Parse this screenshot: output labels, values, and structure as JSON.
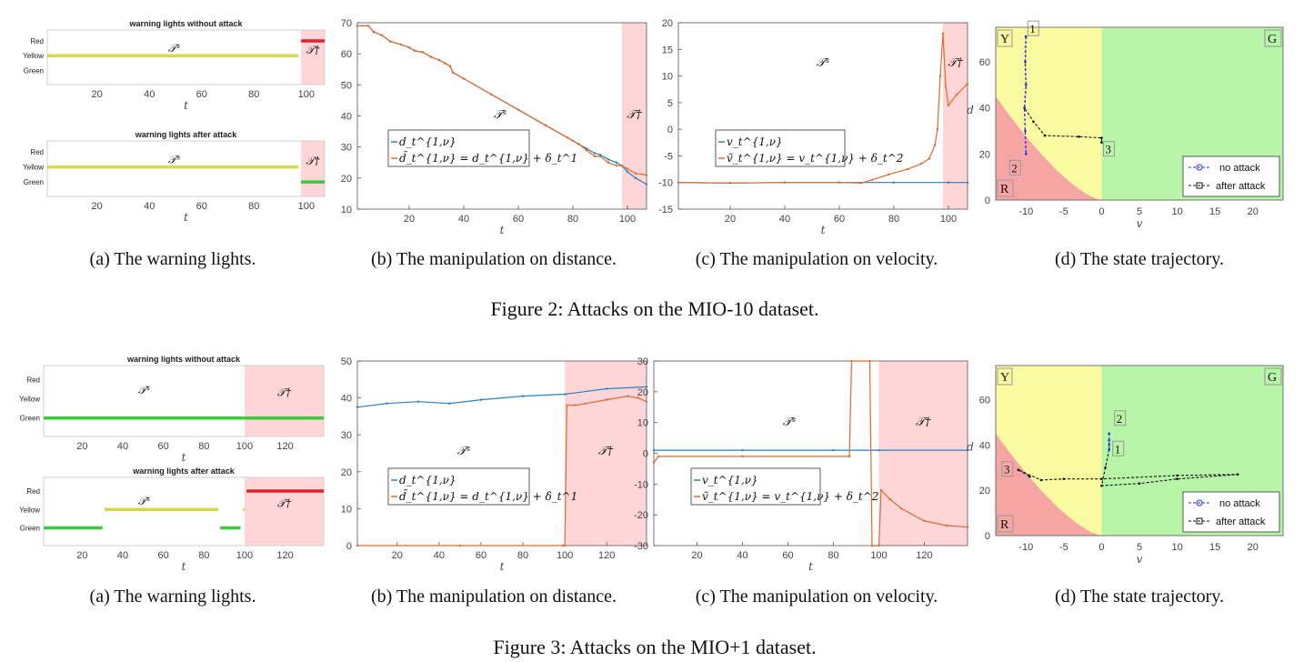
{
  "figures": [
    {
      "caption": "Figure 2: Attacks on the MIO-10 dataset.",
      "sub_captions": [
        "(a) The warning lights.",
        "(b) The manipulation on distance.",
        "(c) The manipulation on velocity.",
        "(d) The state trajectory."
      ],
      "lights_without": {
        "title": "warning lights without attack",
        "levels": [
          "Red",
          "Yellow",
          "Green"
        ],
        "x_ticks": [
          20,
          40,
          60,
          80,
          100
        ],
        "xrange": [
          1,
          107
        ],
        "xlabel": "t",
        "region_normal": "𝒯ˢ",
        "region_attack": "𝒯†",
        "attack_start": 98,
        "segments": [
          {
            "from": 1,
            "to": 97,
            "level": "Yellow"
          },
          {
            "from": 98,
            "to": 107,
            "level": "Red"
          }
        ]
      },
      "lights_after": {
        "title": "warning lights after attack",
        "levels": [
          "Red",
          "Yellow",
          "Green"
        ],
        "x_ticks": [
          20,
          40,
          60,
          80,
          100
        ],
        "xrange": [
          1,
          107
        ],
        "xlabel": "t",
        "region_normal": "𝒯ˢ",
        "region_attack": "𝒯†",
        "attack_start": 98,
        "segments": [
          {
            "from": 1,
            "to": 97,
            "level": "Yellow"
          },
          {
            "from": 98,
            "to": 107,
            "level": "Green"
          }
        ]
      },
      "distance": {
        "xrange": [
          1,
          107
        ],
        "yrange": [
          10,
          70
        ],
        "x_ticks": [
          20,
          40,
          60,
          80,
          100
        ],
        "y_ticks": [
          10,
          20,
          30,
          40,
          50,
          60,
          70
        ],
        "xlabel": "t",
        "region_normal": "𝒯ˢ",
        "region_attack": "𝒯†",
        "attack_start": 98,
        "legend": [
          "d_t^{1,ν}",
          "d̃_t^{1,ν} = d_t^{1,ν} + δ_t^1"
        ],
        "series_original": [
          [
            1,
            69
          ],
          [
            5,
            69
          ],
          [
            7,
            67
          ],
          [
            10,
            66
          ],
          [
            13,
            64
          ],
          [
            17,
            63
          ],
          [
            20,
            62
          ],
          [
            22,
            61
          ],
          [
            25,
            60.5
          ],
          [
            28,
            59
          ],
          [
            31,
            58
          ],
          [
            33,
            57
          ],
          [
            35,
            56
          ],
          [
            36,
            54
          ],
          [
            40,
            52
          ],
          [
            50,
            47
          ],
          [
            60,
            42
          ],
          [
            70,
            37
          ],
          [
            78,
            33
          ],
          [
            80,
            32
          ],
          [
            82,
            31
          ],
          [
            85,
            29.5
          ],
          [
            88,
            28
          ],
          [
            90,
            27.5
          ],
          [
            93,
            26
          ],
          [
            96,
            25
          ],
          [
            98,
            24
          ],
          [
            100,
            22
          ],
          [
            103,
            20
          ],
          [
            107,
            18
          ]
        ],
        "series_attacked": [
          [
            1,
            69
          ],
          [
            5,
            69
          ],
          [
            7,
            67
          ],
          [
            10,
            66
          ],
          [
            13,
            64
          ],
          [
            17,
            63
          ],
          [
            20,
            62
          ],
          [
            22,
            61
          ],
          [
            25,
            60.5
          ],
          [
            28,
            59
          ],
          [
            31,
            58
          ],
          [
            33,
            57
          ],
          [
            35,
            56
          ],
          [
            36,
            54
          ],
          [
            40,
            52
          ],
          [
            50,
            47
          ],
          [
            60,
            42
          ],
          [
            70,
            37
          ],
          [
            78,
            33
          ],
          [
            80,
            32
          ],
          [
            82,
            31
          ],
          [
            85,
            29
          ],
          [
            88,
            27
          ],
          [
            90,
            27
          ],
          [
            93,
            25
          ],
          [
            96,
            24
          ],
          [
            98,
            24
          ],
          [
            100,
            23
          ],
          [
            103,
            21.5
          ],
          [
            107,
            21
          ]
        ]
      },
      "velocity": {
        "xrange": [
          1,
          107
        ],
        "yrange": [
          -15,
          20
        ],
        "x_ticks": [
          20,
          40,
          60,
          80,
          100
        ],
        "y_ticks": [
          -15,
          -10,
          -5,
          0,
          5,
          10,
          15,
          20
        ],
        "xlabel": "t",
        "region_normal": "𝒯ˢ",
        "region_attack": "𝒯†",
        "attack_start": 98,
        "legend": [
          "v_t^{1,ν}",
          "ṽ_t^{1,ν} = v_t^{1,ν} + δ_t^2"
        ],
        "series_original": [
          [
            1,
            -10
          ],
          [
            20,
            -10.1
          ],
          [
            40,
            -10
          ],
          [
            60,
            -10
          ],
          [
            80,
            -10
          ],
          [
            100,
            -10
          ],
          [
            107,
            -10
          ]
        ],
        "series_attacked": [
          [
            1,
            -10
          ],
          [
            20,
            -10.1
          ],
          [
            40,
            -10
          ],
          [
            60,
            -10
          ],
          [
            68,
            -10.1
          ],
          [
            72,
            -9.5
          ],
          [
            78,
            -8.5
          ],
          [
            85,
            -7.5
          ],
          [
            90,
            -6.5
          ],
          [
            93,
            -5.5
          ],
          [
            95,
            -3
          ],
          [
            96,
            0
          ],
          [
            97,
            10
          ],
          [
            98,
            18
          ],
          [
            99,
            8
          ],
          [
            100,
            4.5
          ],
          [
            103,
            6.5
          ],
          [
            107,
            8.5
          ]
        ]
      },
      "trajectory": {
        "xrange": [
          -14,
          24
        ],
        "yrange": [
          0,
          75
        ],
        "x_ticks": [
          -10,
          -5,
          0,
          5,
          10,
          15,
          20
        ],
        "y_ticks": [
          0,
          20,
          40,
          60
        ],
        "xlabel": "v",
        "ylabel": "d",
        "corners": [
          "Y",
          "G",
          "R"
        ],
        "legend": [
          "no attack",
          "after attack"
        ],
        "points": [
          {
            "label": "1",
            "x": -10,
            "y": 71
          },
          {
            "label": "2",
            "x": -10,
            "y": 20
          },
          {
            "label": "3",
            "x": 0,
            "y": 25
          }
        ],
        "no_attack_path": [
          [
            -10,
            71
          ],
          [
            -10.1,
            60
          ],
          [
            -10,
            50
          ],
          [
            -10.2,
            40
          ],
          [
            -10.1,
            30
          ],
          [
            -10,
            20
          ]
        ],
        "after_attack_path": [
          [
            -10,
            71
          ],
          [
            -10.1,
            60
          ],
          [
            -10,
            50
          ],
          [
            -10.2,
            40
          ],
          [
            -9,
            34
          ],
          [
            -7.5,
            28
          ],
          [
            -3,
            27.5
          ],
          [
            0,
            27
          ],
          [
            0,
            25
          ]
        ]
      }
    },
    {
      "caption": "Figure 3: Attacks on the MIO+1 dataset.",
      "sub_captions": [
        "(a) The warning lights.",
        "(b) The manipulation on distance.",
        "(c) The manipulation on velocity.",
        "(d) The state trajectory."
      ],
      "lights_without": {
        "title": "warning lights without attack",
        "levels": [
          "Red",
          "Yellow",
          "Green"
        ],
        "x_ticks": [
          20,
          40,
          60,
          80,
          100,
          120
        ],
        "xrange": [
          1,
          139
        ],
        "xlabel": "t",
        "region_normal": "𝒯ˢ",
        "region_attack": "𝒯†",
        "attack_start": 100,
        "segments": [
          {
            "from": 1,
            "to": 139,
            "level": "Green"
          }
        ]
      },
      "lights_after": {
        "title": "warning lights after attack",
        "levels": [
          "Red",
          "Yellow",
          "Green"
        ],
        "x_ticks": [
          20,
          40,
          60,
          80,
          100,
          120
        ],
        "xrange": [
          1,
          139
        ],
        "xlabel": "t",
        "region_normal": "𝒯ˢ",
        "region_attack": "𝒯†",
        "attack_start": 100,
        "segments": [
          {
            "from": 1,
            "to": 30,
            "level": "Green"
          },
          {
            "from": 31,
            "to": 87,
            "level": "Yellow"
          },
          {
            "from": 88,
            "to": 98,
            "level": "Green"
          },
          {
            "from": 99,
            "to": 100,
            "level": "Yellow"
          },
          {
            "from": 101,
            "to": 139,
            "level": "Red"
          }
        ]
      },
      "distance": {
        "xrange": [
          1,
          139
        ],
        "yrange": [
          0,
          50
        ],
        "x_ticks": [
          20,
          40,
          60,
          80,
          100,
          120
        ],
        "y_ticks": [
          0,
          10,
          20,
          30,
          40,
          50
        ],
        "xlabel": "t",
        "region_normal": "𝒯ˢ",
        "region_attack": "𝒯†",
        "attack_start": 100,
        "legend": [
          "d_t^{1,ν}",
          "d̃_t^{1,ν} = d_t^{1,ν} + δ_t^1"
        ],
        "series_original": [
          [
            1,
            37.5
          ],
          [
            15,
            38.5
          ],
          [
            30,
            39
          ],
          [
            45,
            38.5
          ],
          [
            60,
            39.5
          ],
          [
            80,
            40.5
          ],
          [
            100,
            41
          ],
          [
            120,
            42.5
          ],
          [
            139,
            43
          ]
        ],
        "series_attacked": [
          [
            1,
            0
          ],
          [
            50,
            0
          ],
          [
            99,
            0
          ],
          [
            100,
            0
          ],
          [
            101,
            38
          ],
          [
            105,
            38
          ],
          [
            110,
            38.5
          ],
          [
            120,
            39.5
          ],
          [
            130,
            40.5
          ],
          [
            135,
            40
          ],
          [
            139,
            39
          ]
        ]
      },
      "velocity": {
        "xrange": [
          1,
          139
        ],
        "yrange": [
          -30,
          30
        ],
        "x_ticks": [
          20,
          40,
          60,
          80,
          100,
          120
        ],
        "y_ticks": [
          -30,
          -20,
          -10,
          0,
          10,
          20,
          30
        ],
        "xlabel": "t",
        "region_normal": "𝒯ˢ",
        "region_attack": "𝒯†",
        "attack_start": 100,
        "legend": [
          "v_t^{1,ν}",
          "ṽ_t^{1,ν} = v_t^{1,ν} + δ_t^2"
        ],
        "series_original": [
          [
            1,
            1
          ],
          [
            40,
            1
          ],
          [
            80,
            1
          ],
          [
            100,
            1
          ],
          [
            139,
            1
          ]
        ],
        "series_attacked": [
          [
            1,
            -3
          ],
          [
            3,
            -1
          ],
          [
            40,
            -1
          ],
          [
            87,
            -1
          ],
          [
            88,
            30
          ],
          [
            96,
            30
          ],
          [
            97,
            -30
          ],
          [
            100,
            -30
          ],
          [
            101,
            -12
          ],
          [
            105,
            -15
          ],
          [
            110,
            -18
          ],
          [
            120,
            -22
          ],
          [
            130,
            -23.5
          ],
          [
            139,
            -24
          ]
        ]
      },
      "trajectory": {
        "xrange": [
          -14,
          24
        ],
        "yrange": [
          0,
          75
        ],
        "x_ticks": [
          -10,
          -5,
          0,
          5,
          10,
          15,
          20
        ],
        "y_ticks": [
          0,
          20,
          40,
          60
        ],
        "xlabel": "v",
        "ylabel": "d",
        "corners": [
          "Y",
          "G",
          "R"
        ],
        "legend": [
          "no attack",
          "after attack"
        ],
        "points": [
          {
            "label": "1",
            "x": 1,
            "y": 38
          },
          {
            "label": "2",
            "x": 1,
            "y": 45
          },
          {
            "label": "3",
            "x": -11,
            "y": 29
          }
        ],
        "no_attack_path": [
          [
            1,
            38
          ],
          [
            1,
            40
          ],
          [
            1,
            42
          ],
          [
            1,
            45
          ]
        ],
        "after_attack_path": [
          [
            1,
            38
          ],
          [
            0.5,
            30
          ],
          [
            0,
            22
          ],
          [
            5,
            23
          ],
          [
            10,
            25
          ],
          [
            18,
            27
          ],
          [
            10,
            26.5
          ],
          [
            0,
            25
          ],
          [
            -5,
            25
          ],
          [
            -8,
            24.5
          ],
          [
            -11,
            29
          ],
          [
            -9.5,
            26
          ]
        ]
      }
    }
  ]
}
